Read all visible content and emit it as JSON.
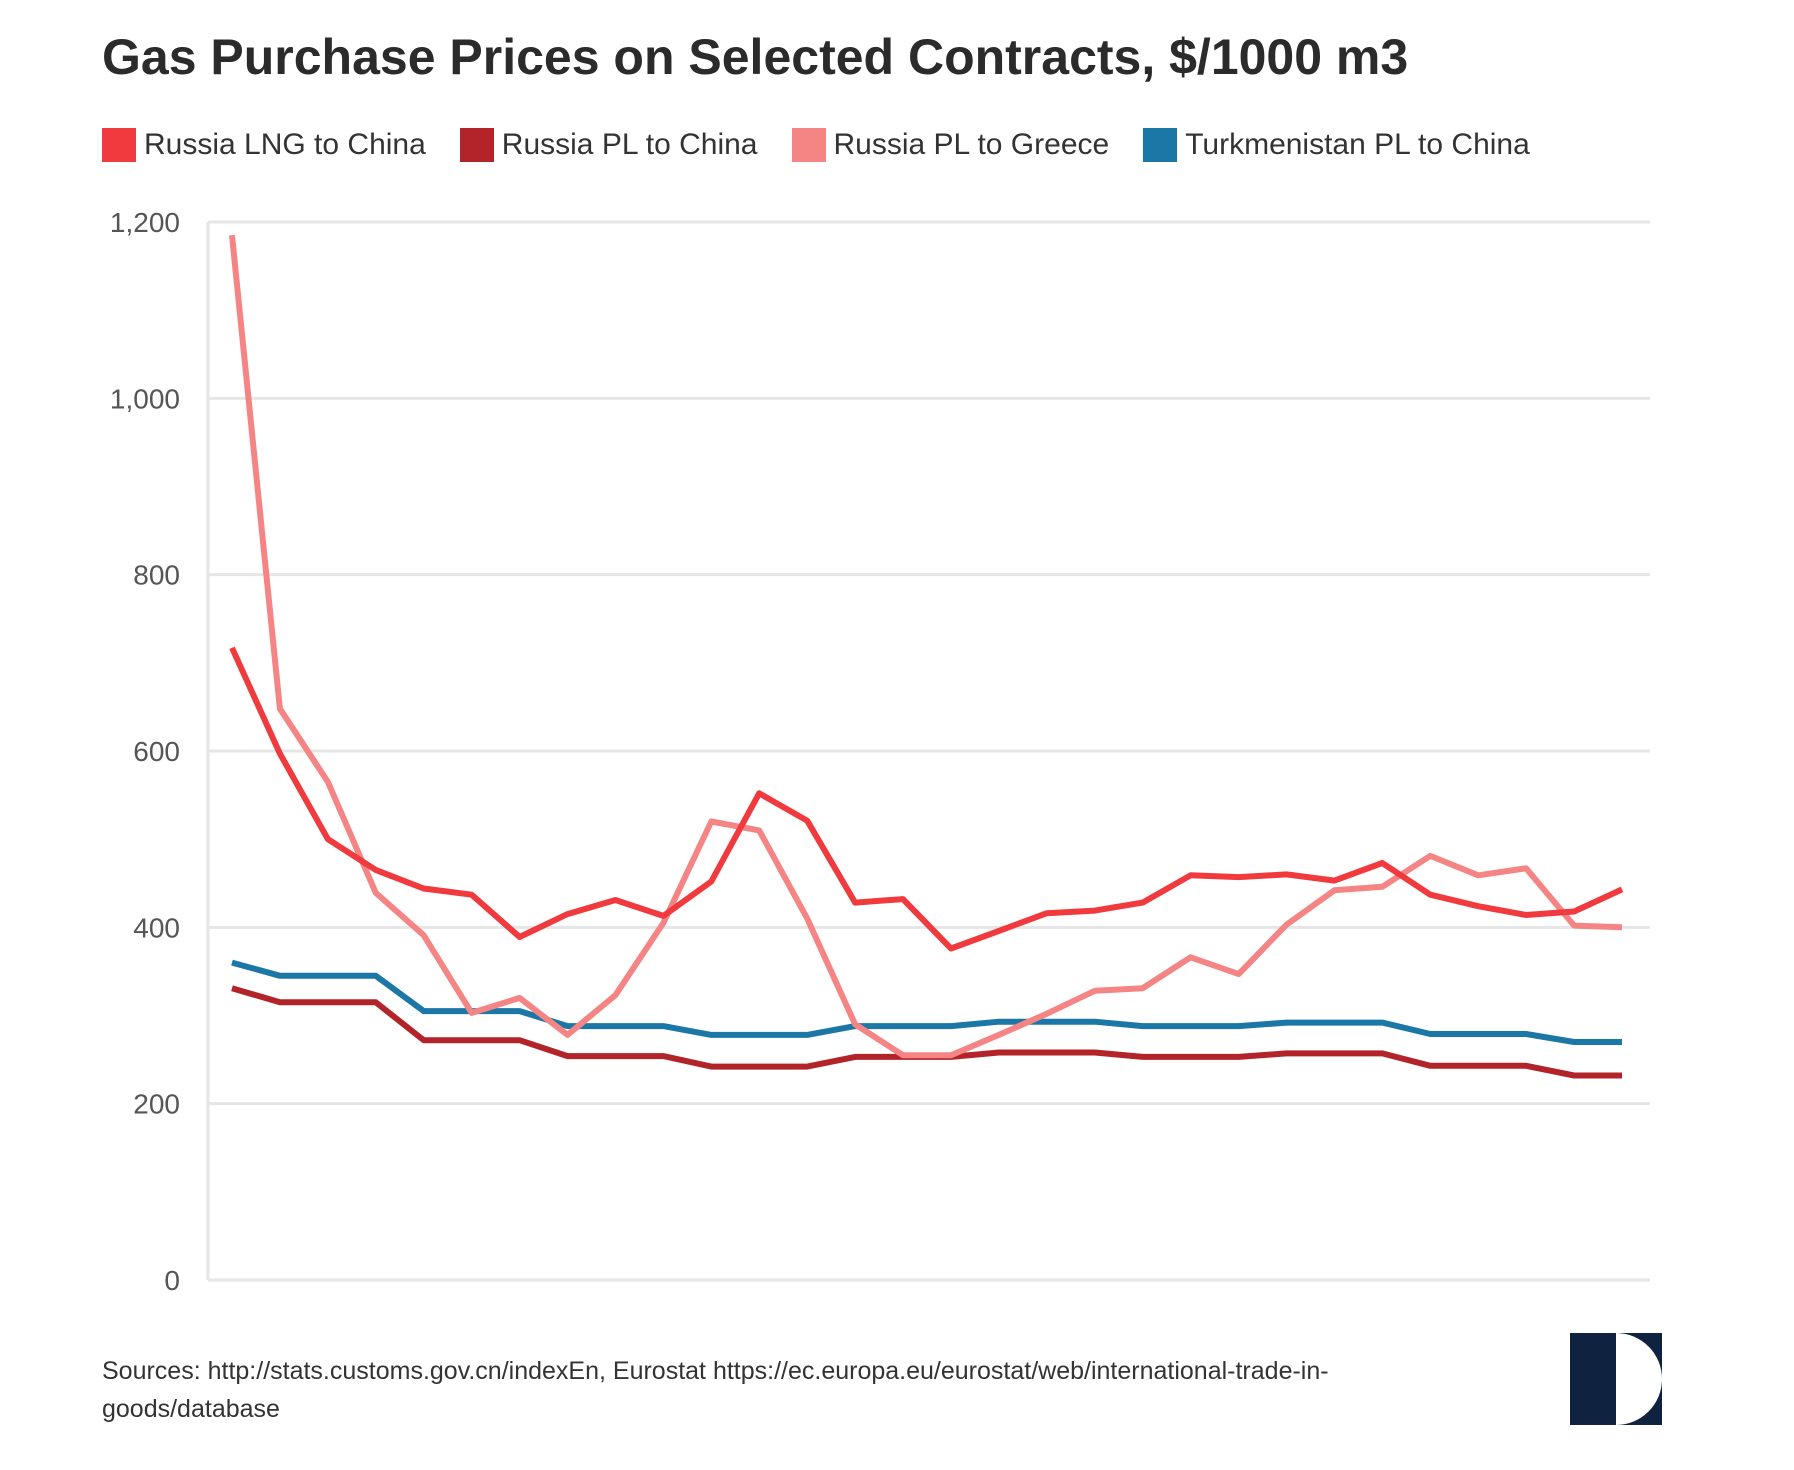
{
  "chart_data": {
    "type": "line",
    "title": "Gas Purchase Prices on Selected Contracts, $/1000 m3",
    "xlabel": "",
    "ylabel": "",
    "ylim": [
      0,
      1200
    ],
    "yticks": [
      0,
      200,
      400,
      600,
      800,
      1000,
      1200
    ],
    "ytick_labels": [
      "0",
      "200",
      "400",
      "600",
      "800",
      "1,000",
      "1,200"
    ],
    "grid": true,
    "legend_position": "top-left",
    "x": [
      1,
      2,
      3,
      4,
      5,
      6,
      7,
      8,
      9,
      10,
      11,
      12,
      13,
      14,
      15,
      16,
      17,
      18,
      19,
      20,
      21,
      22,
      23,
      24,
      25,
      26,
      27,
      28,
      29,
      30
    ],
    "series": [
      {
        "name": "Russia LNG to China",
        "color": "#f03a3e",
        "values": [
          717,
          597,
          500,
          465,
          444,
          437,
          389,
          415,
          431,
          413,
          452,
          552,
          521,
          428,
          432,
          376,
          396,
          416,
          419,
          428,
          459,
          457,
          460,
          453,
          473,
          437,
          424,
          414,
          418,
          443
        ]
      },
      {
        "name": "Russia PL to China",
        "color": "#b3242a",
        "values": [
          331,
          315,
          315,
          315,
          272,
          272,
          272,
          254,
          254,
          254,
          242,
          242,
          242,
          253,
          253,
          253,
          258,
          258,
          258,
          253,
          253,
          253,
          257,
          257,
          257,
          243,
          243,
          243,
          232,
          232
        ]
      },
      {
        "name": "Russia PL to Greece",
        "color": "#f58585",
        "values": [
          1185,
          648,
          565,
          439,
          391,
          303,
          320,
          278,
          323,
          405,
          520,
          510,
          410,
          290,
          255,
          255,
          278,
          302,
          328,
          331,
          366,
          347,
          403,
          442,
          446,
          481,
          459,
          467,
          402,
          400
        ]
      },
      {
        "name": "Turkmenistan PL to China",
        "color": "#1b77a6",
        "values": [
          360,
          345,
          345,
          345,
          305,
          305,
          305,
          288,
          288,
          288,
          278,
          278,
          278,
          288,
          288,
          288,
          293,
          293,
          293,
          288,
          288,
          288,
          292,
          292,
          292,
          279,
          279,
          279,
          270,
          270
        ]
      }
    ]
  },
  "footer": {
    "source_line1": "Sources: http://stats.customs.gov.cn/indexEn, Eurostat https://ec.europa.eu/eurostat/web/international-trade-in-",
    "source_line2": "goods/database",
    "logo_icon": "half-circle-logo-icon",
    "logo_color": "#0f2240"
  }
}
